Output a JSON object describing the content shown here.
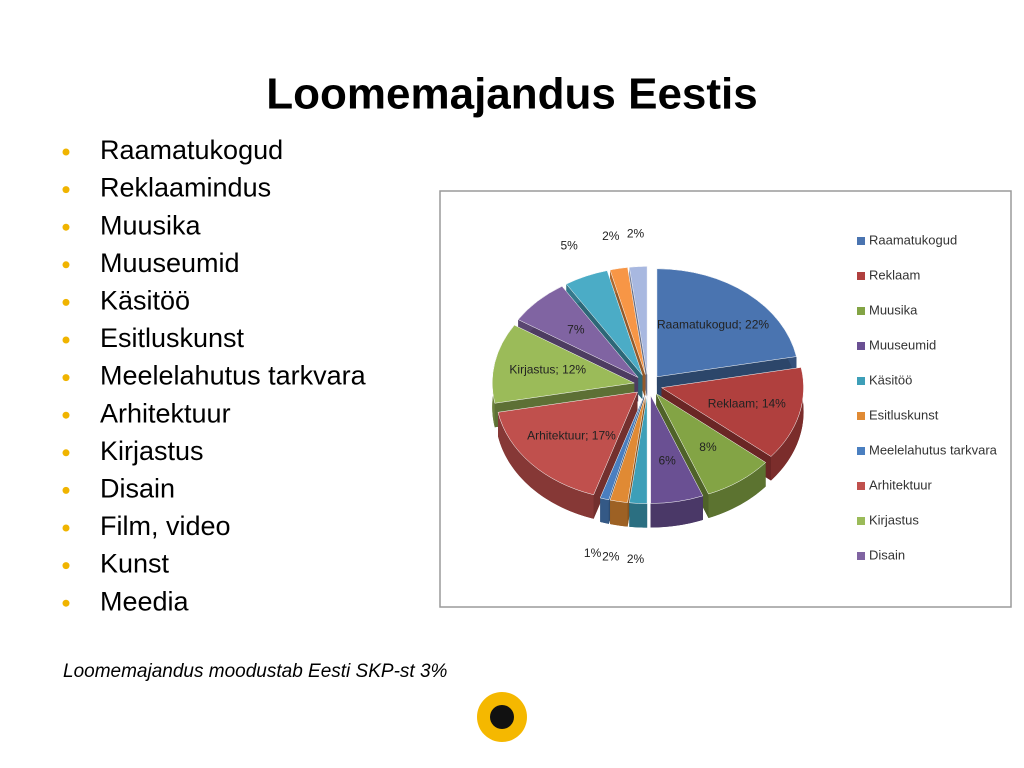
{
  "title": "Loomemajandus Eestis",
  "bullets": [
    "Raamatukogud",
    "Reklaamindus",
    "Muusika",
    "Muuseumid",
    "Käsitöö",
    "Esitluskunst",
    "Meelelahutus tarkvara",
    "Arhitektuur",
    "Kirjastus",
    "Disain",
    "Film, video",
    "Kunst",
    "Meedia"
  ],
  "footnote": "Loomemajandus moodustab Eesti SKP-st 3%",
  "chart_data": {
    "type": "pie",
    "categories": [
      "Raamatukogud",
      "Reklaam",
      "Muusika",
      "Muuseumid",
      "Käsitöö",
      "Esitluskunst",
      "Meelelahutus tarkvara",
      "Arhitektuur",
      "Kirjastus",
      "Disain",
      null,
      null,
      null
    ],
    "values": [
      22,
      14,
      8,
      6,
      2,
      2,
      1,
      17,
      12,
      7,
      5,
      2,
      2
    ],
    "value_labels": [
      "Raamatukogud; 22%",
      "Reklaam; 14%",
      "8%",
      "6%",
      "2%",
      "2%",
      "1%",
      "Arhitektuur; 17%",
      "Kirjastus; 12%",
      "7%",
      "5%",
      "2%",
      "2%"
    ],
    "colors": [
      "#4a74b0",
      "#b0403e",
      "#83a445",
      "#6a5093",
      "#3d9fb8",
      "#e08a34",
      "#4a7fc0",
      "#c0504d",
      "#9bbb59",
      "#8064a2",
      "#4bacc6",
      "#f79646",
      "#a8b8e0"
    ],
    "legend": "right"
  }
}
